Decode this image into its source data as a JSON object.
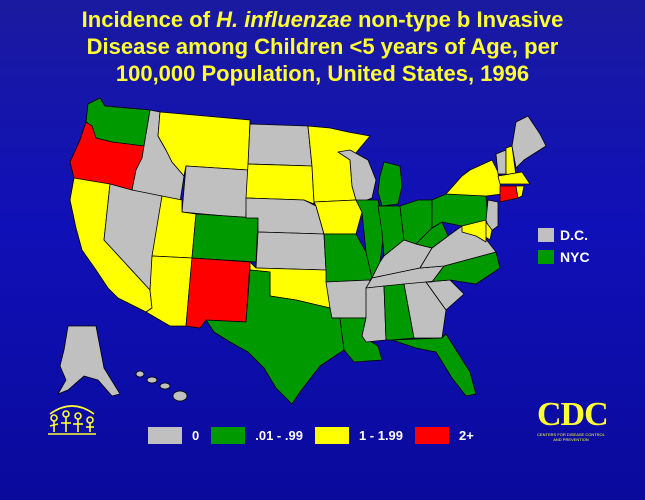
{
  "title": {
    "line1_prefix": "Incidence of ",
    "line1_italic": "H. influenzae",
    "line1_suffix": " non-type b Invasive",
    "line2": "Disease among Children <5 years of Age, per",
    "line3": "100,000 Population, United States, 1996"
  },
  "colors": {
    "background": "#1010b8",
    "title": "#ffff33",
    "cat_0": "#c0c0c0",
    "cat_low": "#009900",
    "cat_mid": "#ffff00",
    "cat_high": "#ff0000",
    "border": "#000000"
  },
  "side_legend": [
    {
      "label": "D.C.",
      "category": "0"
    },
    {
      "label": "NYC",
      "category": ".01 - .99"
    }
  ],
  "legend": [
    {
      "label": "0",
      "category": "0"
    },
    {
      "label": ".01 - .99",
      "category": ".01 - .99"
    },
    {
      "label": "1 - 1.99",
      "category": "1 - 1.99"
    },
    {
      "label": "2+",
      "category": "2+"
    }
  ],
  "states": {
    "WA": ".01 - .99",
    "OR": "2+",
    "CA": "1 - 1.99",
    "ID": "0",
    "NV": "0",
    "MT": "1 - 1.99",
    "WY": "0",
    "UT": "1 - 1.99",
    "AZ": "1 - 1.99",
    "CO": ".01 - .99",
    "NM": "2+",
    "ND": "0",
    "SD": "1 - 1.99",
    "NE": "0",
    "KS": "0",
    "OK": "1 - 1.99",
    "TX": ".01 - .99",
    "MN": "1 - 1.99",
    "IA": "1 - 1.99",
    "MO": ".01 - .99",
    "AR": "0",
    "LA": ".01 - .99",
    "WI": "0",
    "IL": ".01 - .99",
    "MI": ".01 - .99",
    "IN": ".01 - .99",
    "OH": ".01 - .99",
    "KY": "0",
    "TN": "0",
    "MS": "0",
    "AL": ".01 - .99",
    "GA": "0",
    "FL": ".01 - .99",
    "SC": "0",
    "NC": ".01 - .99",
    "VA": "0",
    "WV": ".01 - .99",
    "PA": ".01 - .99",
    "NY": "1 - 1.99",
    "VT": "0",
    "NH": "1 - 1.99",
    "ME": "0",
    "MA": "1 - 1.99",
    "CT": "2+",
    "RI": "1 - 1.99",
    "NJ": "0",
    "DE": "1 - 1.99",
    "MD": "1 - 1.99",
    "AK": "0",
    "HI": "0"
  },
  "logo": {
    "text": "CDC",
    "subtext": "CENTERS FOR DISEASE CONTROL AND PREVENTION"
  }
}
